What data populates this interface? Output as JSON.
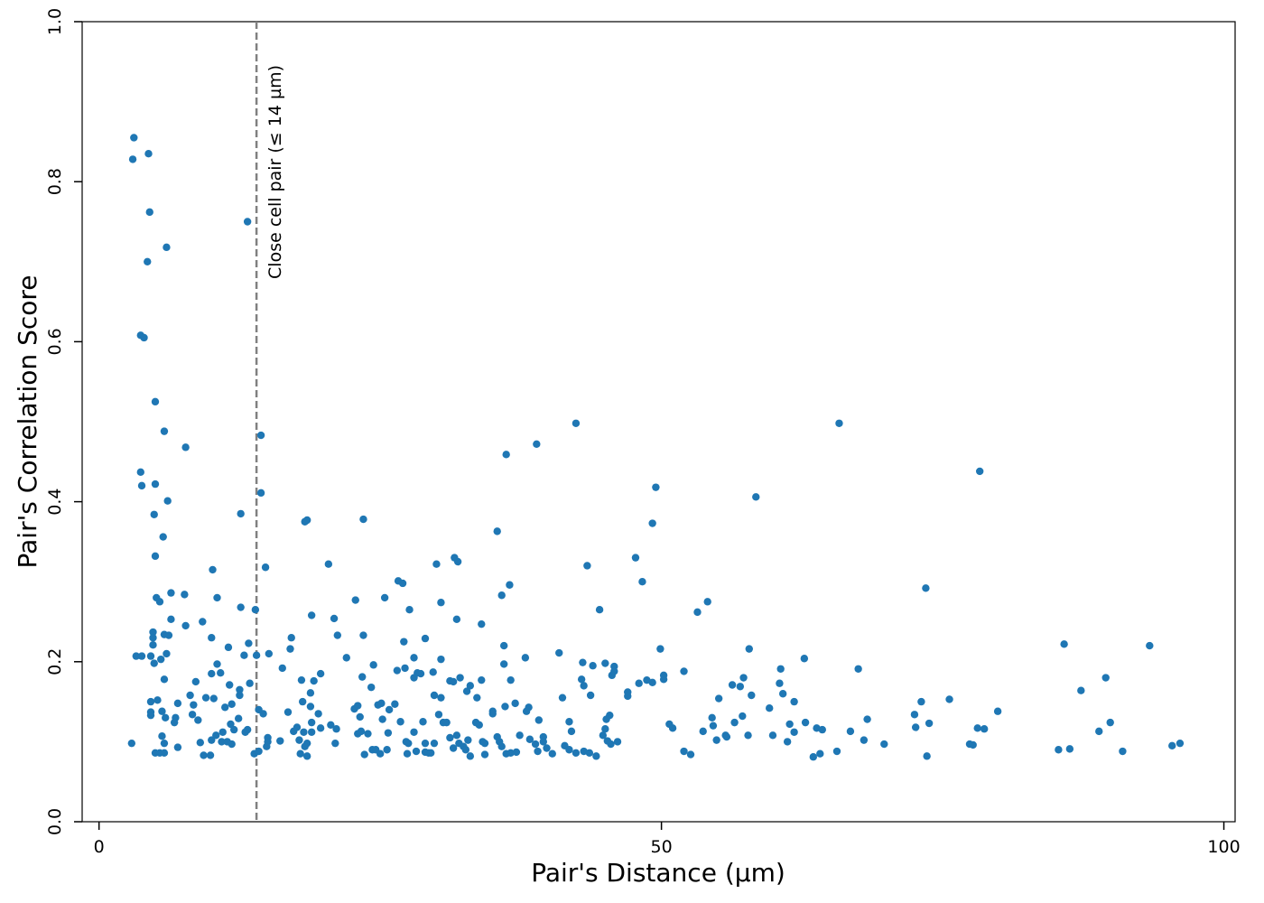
{
  "chart_data": {
    "type": "scatter",
    "title": "",
    "xlabel": "Pair's Distance (µm)",
    "ylabel": "Pair's Correlation Score",
    "xlim": [
      -1.5,
      101
    ],
    "ylim": [
      0,
      1.0
    ],
    "x_ticks": [
      0,
      50,
      100
    ],
    "y_ticks": [
      0.0,
      0.2,
      0.4,
      0.6,
      0.8,
      1.0
    ],
    "x_tick_labels": [
      "0",
      "50",
      "100"
    ],
    "y_tick_labels": [
      "0.0",
      "0.2",
      "0.4",
      "0.6",
      "0.8",
      "1.0"
    ],
    "grid": false,
    "point_color": "#1f77b4",
    "threshold": {
      "x": 14,
      "label": "Close cell pair (≤ 14 µm)",
      "color": "#808080"
    },
    "points": [
      [
        3.1,
        0.855
      ],
      [
        3.0,
        0.828
      ],
      [
        4.4,
        0.835
      ],
      [
        4.5,
        0.762
      ],
      [
        4.3,
        0.7
      ],
      [
        6.0,
        0.718
      ],
      [
        13.2,
        0.75
      ],
      [
        3.7,
        0.608
      ],
      [
        4.0,
        0.605
      ],
      [
        5.0,
        0.525
      ],
      [
        5.8,
        0.488
      ],
      [
        7.7,
        0.468
      ],
      [
        3.7,
        0.437
      ],
      [
        3.8,
        0.42
      ],
      [
        5.0,
        0.422
      ],
      [
        6.1,
        0.401
      ],
      [
        4.9,
        0.384
      ],
      [
        5.7,
        0.356
      ],
      [
        5.0,
        0.332
      ],
      [
        14.4,
        0.483
      ],
      [
        14.4,
        0.411
      ],
      [
        12.6,
        0.385
      ],
      [
        14.8,
        0.318
      ],
      [
        5.1,
        0.28
      ],
      [
        5.4,
        0.275
      ],
      [
        6.4,
        0.286
      ],
      [
        7.6,
        0.284
      ],
      [
        10.1,
        0.315
      ],
      [
        10.5,
        0.28
      ],
      [
        6.4,
        0.253
      ],
      [
        7.7,
        0.245
      ],
      [
        9.2,
        0.25
      ],
      [
        12.6,
        0.268
      ],
      [
        13.9,
        0.265
      ],
      [
        4.8,
        0.237
      ],
      [
        5.8,
        0.234
      ],
      [
        6.2,
        0.233
      ],
      [
        4.8,
        0.23
      ],
      [
        4.8,
        0.221
      ],
      [
        6.0,
        0.21
      ],
      [
        3.3,
        0.207
      ],
      [
        3.8,
        0.207
      ],
      [
        4.6,
        0.207
      ],
      [
        5.5,
        0.203
      ],
      [
        4.9,
        0.198
      ],
      [
        10.0,
        0.23
      ],
      [
        11.5,
        0.218
      ],
      [
        13.3,
        0.223
      ],
      [
        12.9,
        0.208
      ],
      [
        14.0,
        0.208
      ],
      [
        10.5,
        0.197
      ],
      [
        10.8,
        0.186
      ],
      [
        10.0,
        0.185
      ],
      [
        5.8,
        0.178
      ],
      [
        8.6,
        0.175
      ],
      [
        11.6,
        0.171
      ],
      [
        13.4,
        0.173
      ],
      [
        12.5,
        0.165
      ],
      [
        12.5,
        0.158
      ],
      [
        9.5,
        0.155
      ],
      [
        10.2,
        0.154
      ],
      [
        11.8,
        0.147
      ],
      [
        11.2,
        0.143
      ],
      [
        8.1,
        0.158
      ],
      [
        8.4,
        0.146
      ],
      [
        7.0,
        0.148
      ],
      [
        4.6,
        0.15
      ],
      [
        5.2,
        0.152
      ],
      [
        5.6,
        0.138
      ],
      [
        4.6,
        0.137
      ],
      [
        4.6,
        0.133
      ],
      [
        5.9,
        0.13
      ],
      [
        6.8,
        0.13
      ],
      [
        6.7,
        0.124
      ],
      [
        8.3,
        0.134
      ],
      [
        8.8,
        0.127
      ],
      [
        12.4,
        0.129
      ],
      [
        11.7,
        0.122
      ],
      [
        12.0,
        0.115
      ],
      [
        13.2,
        0.115
      ],
      [
        13.0,
        0.112
      ],
      [
        11.0,
        0.112
      ],
      [
        10.4,
        0.108
      ],
      [
        10.0,
        0.102
      ],
      [
        10.9,
        0.1
      ],
      [
        11.4,
        0.1
      ],
      [
        11.8,
        0.097
      ],
      [
        9.0,
        0.099
      ],
      [
        7.0,
        0.093
      ],
      [
        5.6,
        0.107
      ],
      [
        5.8,
        0.098
      ],
      [
        5.0,
        0.086
      ],
      [
        5.4,
        0.086
      ],
      [
        5.8,
        0.086
      ],
      [
        2.9,
        0.098
      ],
      [
        9.3,
        0.083
      ],
      [
        9.9,
        0.083
      ],
      [
        14.2,
        0.14
      ],
      [
        14.6,
        0.135
      ],
      [
        15.0,
        0.105
      ],
      [
        15.0,
        0.1
      ],
      [
        14.9,
        0.094
      ],
      [
        13.8,
        0.085
      ],
      [
        14.2,
        0.088
      ],
      [
        15.1,
        0.21
      ],
      [
        16.3,
        0.192
      ],
      [
        17.1,
        0.23
      ],
      [
        17.0,
        0.216
      ],
      [
        18.3,
        0.375
      ],
      [
        18.5,
        0.377
      ],
      [
        18.9,
        0.258
      ],
      [
        20.4,
        0.322
      ],
      [
        20.9,
        0.254
      ],
      [
        21.2,
        0.233
      ],
      [
        22.8,
        0.277
      ],
      [
        23.5,
        0.233
      ],
      [
        23.5,
        0.378
      ],
      [
        25.4,
        0.28
      ],
      [
        26.5,
        0.189
      ],
      [
        27.2,
        0.192
      ],
      [
        26.6,
        0.301
      ],
      [
        27.0,
        0.298
      ],
      [
        27.6,
        0.265
      ],
      [
        28.0,
        0.205
      ],
      [
        27.1,
        0.225
      ],
      [
        28.3,
        0.186
      ],
      [
        28.6,
        0.185
      ],
      [
        28.0,
        0.18
      ],
      [
        29.0,
        0.229
      ],
      [
        30.0,
        0.322
      ],
      [
        30.4,
        0.274
      ],
      [
        30.4,
        0.203
      ],
      [
        31.2,
        0.176
      ],
      [
        31.5,
        0.175
      ],
      [
        31.6,
        0.33
      ],
      [
        31.9,
        0.325
      ],
      [
        31.8,
        0.253
      ],
      [
        32.1,
        0.18
      ],
      [
        33.0,
        0.17
      ],
      [
        32.7,
        0.163
      ],
      [
        34.0,
        0.247
      ],
      [
        34.0,
        0.177
      ],
      [
        35.0,
        0.138
      ],
      [
        35.0,
        0.135
      ],
      [
        35.4,
        0.363
      ],
      [
        35.8,
        0.283
      ],
      [
        36.2,
        0.459
      ],
      [
        36.5,
        0.296
      ],
      [
        36.0,
        0.22
      ],
      [
        36.0,
        0.197
      ],
      [
        36.6,
        0.177
      ],
      [
        37.0,
        0.148
      ],
      [
        36.1,
        0.144
      ],
      [
        37.9,
        0.205
      ],
      [
        38.2,
        0.143
      ],
      [
        38.9,
        0.472
      ],
      [
        38.0,
        0.138
      ],
      [
        39.1,
        0.127
      ],
      [
        39.5,
        0.106
      ],
      [
        39.5,
        0.1
      ],
      [
        40.9,
        0.211
      ],
      [
        41.2,
        0.155
      ],
      [
        41.8,
        0.125
      ],
      [
        42.0,
        0.113
      ],
      [
        42.4,
        0.498
      ],
      [
        42.9,
        0.178
      ],
      [
        43.1,
        0.17
      ],
      [
        43.0,
        0.199
      ],
      [
        43.7,
        0.158
      ],
      [
        43.4,
        0.32
      ],
      [
        43.9,
        0.195
      ],
      [
        44.5,
        0.265
      ],
      [
        45.0,
        0.198
      ],
      [
        45.4,
        0.133
      ],
      [
        45.1,
        0.128
      ],
      [
        45.0,
        0.116
      ],
      [
        45.6,
        0.183
      ],
      [
        45.8,
        0.194
      ],
      [
        45.8,
        0.188
      ],
      [
        47.0,
        0.162
      ],
      [
        47.0,
        0.157
      ],
      [
        47.7,
        0.33
      ],
      [
        48.3,
        0.3
      ],
      [
        48.0,
        0.173
      ],
      [
        48.7,
        0.177
      ],
      [
        49.2,
        0.174
      ],
      [
        49.2,
        0.373
      ],
      [
        49.5,
        0.418
      ],
      [
        49.9,
        0.216
      ],
      [
        50.2,
        0.178
      ],
      [
        50.2,
        0.183
      ],
      [
        50.7,
        0.122
      ],
      [
        51.0,
        0.117
      ],
      [
        52.0,
        0.188
      ],
      [
        52.0,
        0.088
      ],
      [
        52.6,
        0.084
      ],
      [
        53.2,
        0.262
      ],
      [
        53.7,
        0.113
      ],
      [
        54.1,
        0.275
      ],
      [
        54.5,
        0.13
      ],
      [
        54.6,
        0.12
      ],
      [
        54.9,
        0.102
      ],
      [
        55.1,
        0.154
      ],
      [
        55.7,
        0.108
      ],
      [
        55.8,
        0.106
      ],
      [
        56.3,
        0.171
      ],
      [
        56.5,
        0.124
      ],
      [
        57.0,
        0.169
      ],
      [
        57.3,
        0.18
      ],
      [
        57.2,
        0.132
      ],
      [
        57.8,
        0.216
      ],
      [
        57.7,
        0.108
      ],
      [
        58.0,
        0.158
      ],
      [
        58.4,
        0.406
      ],
      [
        59.6,
        0.142
      ],
      [
        59.9,
        0.108
      ],
      [
        60.5,
        0.173
      ],
      [
        60.6,
        0.191
      ],
      [
        60.8,
        0.16
      ],
      [
        61.2,
        0.1
      ],
      [
        61.4,
        0.122
      ],
      [
        61.8,
        0.15
      ],
      [
        61.8,
        0.112
      ],
      [
        62.7,
        0.204
      ],
      [
        62.8,
        0.124
      ],
      [
        63.5,
        0.081
      ],
      [
        63.8,
        0.117
      ],
      [
        64.1,
        0.085
      ],
      [
        64.3,
        0.115
      ],
      [
        65.6,
        0.088
      ],
      [
        65.8,
        0.498
      ],
      [
        66.8,
        0.113
      ],
      [
        67.5,
        0.191
      ],
      [
        68.0,
        0.102
      ],
      [
        68.3,
        0.128
      ],
      [
        69.8,
        0.097
      ],
      [
        72.5,
        0.134
      ],
      [
        72.6,
        0.118
      ],
      [
        73.1,
        0.15
      ],
      [
        73.5,
        0.292
      ],
      [
        73.8,
        0.123
      ],
      [
        73.6,
        0.082
      ],
      [
        75.6,
        0.153
      ],
      [
        77.4,
        0.097
      ],
      [
        77.7,
        0.096
      ],
      [
        78.1,
        0.117
      ],
      [
        78.3,
        0.438
      ],
      [
        78.7,
        0.116
      ],
      [
        79.9,
        0.138
      ],
      [
        85.3,
        0.09
      ],
      [
        85.8,
        0.222
      ],
      [
        86.3,
        0.091
      ],
      [
        87.3,
        0.164
      ],
      [
        88.9,
        0.113
      ],
      [
        89.5,
        0.18
      ],
      [
        89.9,
        0.124
      ],
      [
        91.0,
        0.088
      ],
      [
        93.4,
        0.22
      ],
      [
        95.4,
        0.095
      ],
      [
        96.1,
        0.098
      ],
      [
        16.1,
        0.101
      ],
      [
        16.8,
        0.137
      ],
      [
        17.3,
        0.113
      ],
      [
        17.6,
        0.118
      ],
      [
        17.8,
        0.102
      ],
      [
        17.9,
        0.085
      ],
      [
        18.0,
        0.177
      ],
      [
        18.1,
        0.15
      ],
      [
        18.2,
        0.112
      ],
      [
        18.5,
        0.098
      ],
      [
        18.3,
        0.094
      ],
      [
        18.5,
        0.082
      ],
      [
        18.8,
        0.161
      ],
      [
        18.8,
        0.144
      ],
      [
        18.9,
        0.124
      ],
      [
        18.9,
        0.112
      ],
      [
        19.1,
        0.176
      ],
      [
        19.7,
        0.185
      ],
      [
        19.5,
        0.135
      ],
      [
        19.7,
        0.117
      ],
      [
        20.6,
        0.121
      ],
      [
        21.1,
        0.116
      ],
      [
        21.0,
        0.098
      ],
      [
        22.0,
        0.205
      ],
      [
        22.7,
        0.141
      ],
      [
        23.0,
        0.145
      ],
      [
        23.2,
        0.131
      ],
      [
        23.0,
        0.11
      ],
      [
        23.4,
        0.181
      ],
      [
        23.3,
        0.113
      ],
      [
        23.6,
        0.084
      ],
      [
        23.9,
        0.11
      ],
      [
        24.2,
        0.168
      ],
      [
        24.4,
        0.196
      ],
      [
        24.3,
        0.09
      ],
      [
        24.6,
        0.09
      ],
      [
        24.8,
        0.146
      ],
      [
        25.1,
        0.148
      ],
      [
        25.2,
        0.128
      ],
      [
        25.0,
        0.085
      ],
      [
        25.8,
        0.14
      ],
      [
        25.7,
        0.111
      ],
      [
        25.6,
        0.09
      ],
      [
        26.3,
        0.147
      ],
      [
        26.8,
        0.125
      ],
      [
        27.3,
        0.1
      ],
      [
        27.5,
        0.098
      ],
      [
        27.4,
        0.085
      ],
      [
        28.0,
        0.112
      ],
      [
        28.2,
        0.088
      ],
      [
        28.8,
        0.125
      ],
      [
        29.0,
        0.098
      ],
      [
        29.0,
        0.087
      ],
      [
        29.3,
        0.086
      ],
      [
        29.5,
        0.086
      ],
      [
        29.7,
        0.187
      ],
      [
        29.8,
        0.158
      ],
      [
        29.8,
        0.098
      ],
      [
        30.2,
        0.134
      ],
      [
        30.4,
        0.155
      ],
      [
        30.6,
        0.124
      ],
      [
        30.9,
        0.124
      ],
      [
        31.2,
        0.105
      ],
      [
        31.5,
        0.092
      ],
      [
        31.8,
        0.108
      ],
      [
        32.0,
        0.098
      ],
      [
        32.4,
        0.094
      ],
      [
        32.6,
        0.09
      ],
      [
        32.8,
        0.102
      ],
      [
        33.0,
        0.082
      ],
      [
        33.6,
        0.155
      ],
      [
        33.5,
        0.124
      ],
      [
        33.8,
        0.121
      ],
      [
        34.1,
        0.1
      ],
      [
        34.3,
        0.098
      ],
      [
        34.3,
        0.084
      ],
      [
        35.4,
        0.106
      ],
      [
        35.6,
        0.1
      ],
      [
        35.8,
        0.094
      ],
      [
        36.2,
        0.085
      ],
      [
        36.6,
        0.086
      ],
      [
        37.1,
        0.087
      ],
      [
        37.4,
        0.108
      ],
      [
        38.3,
        0.103
      ],
      [
        38.8,
        0.097
      ],
      [
        39.0,
        0.088
      ],
      [
        39.8,
        0.092
      ],
      [
        40.3,
        0.085
      ],
      [
        41.4,
        0.095
      ],
      [
        41.8,
        0.09
      ],
      [
        42.4,
        0.086
      ],
      [
        43.1,
        0.088
      ],
      [
        43.6,
        0.086
      ],
      [
        44.2,
        0.082
      ],
      [
        44.8,
        0.108
      ],
      [
        45.2,
        0.101
      ],
      [
        45.5,
        0.097
      ],
      [
        46.1,
        0.1
      ]
    ]
  }
}
